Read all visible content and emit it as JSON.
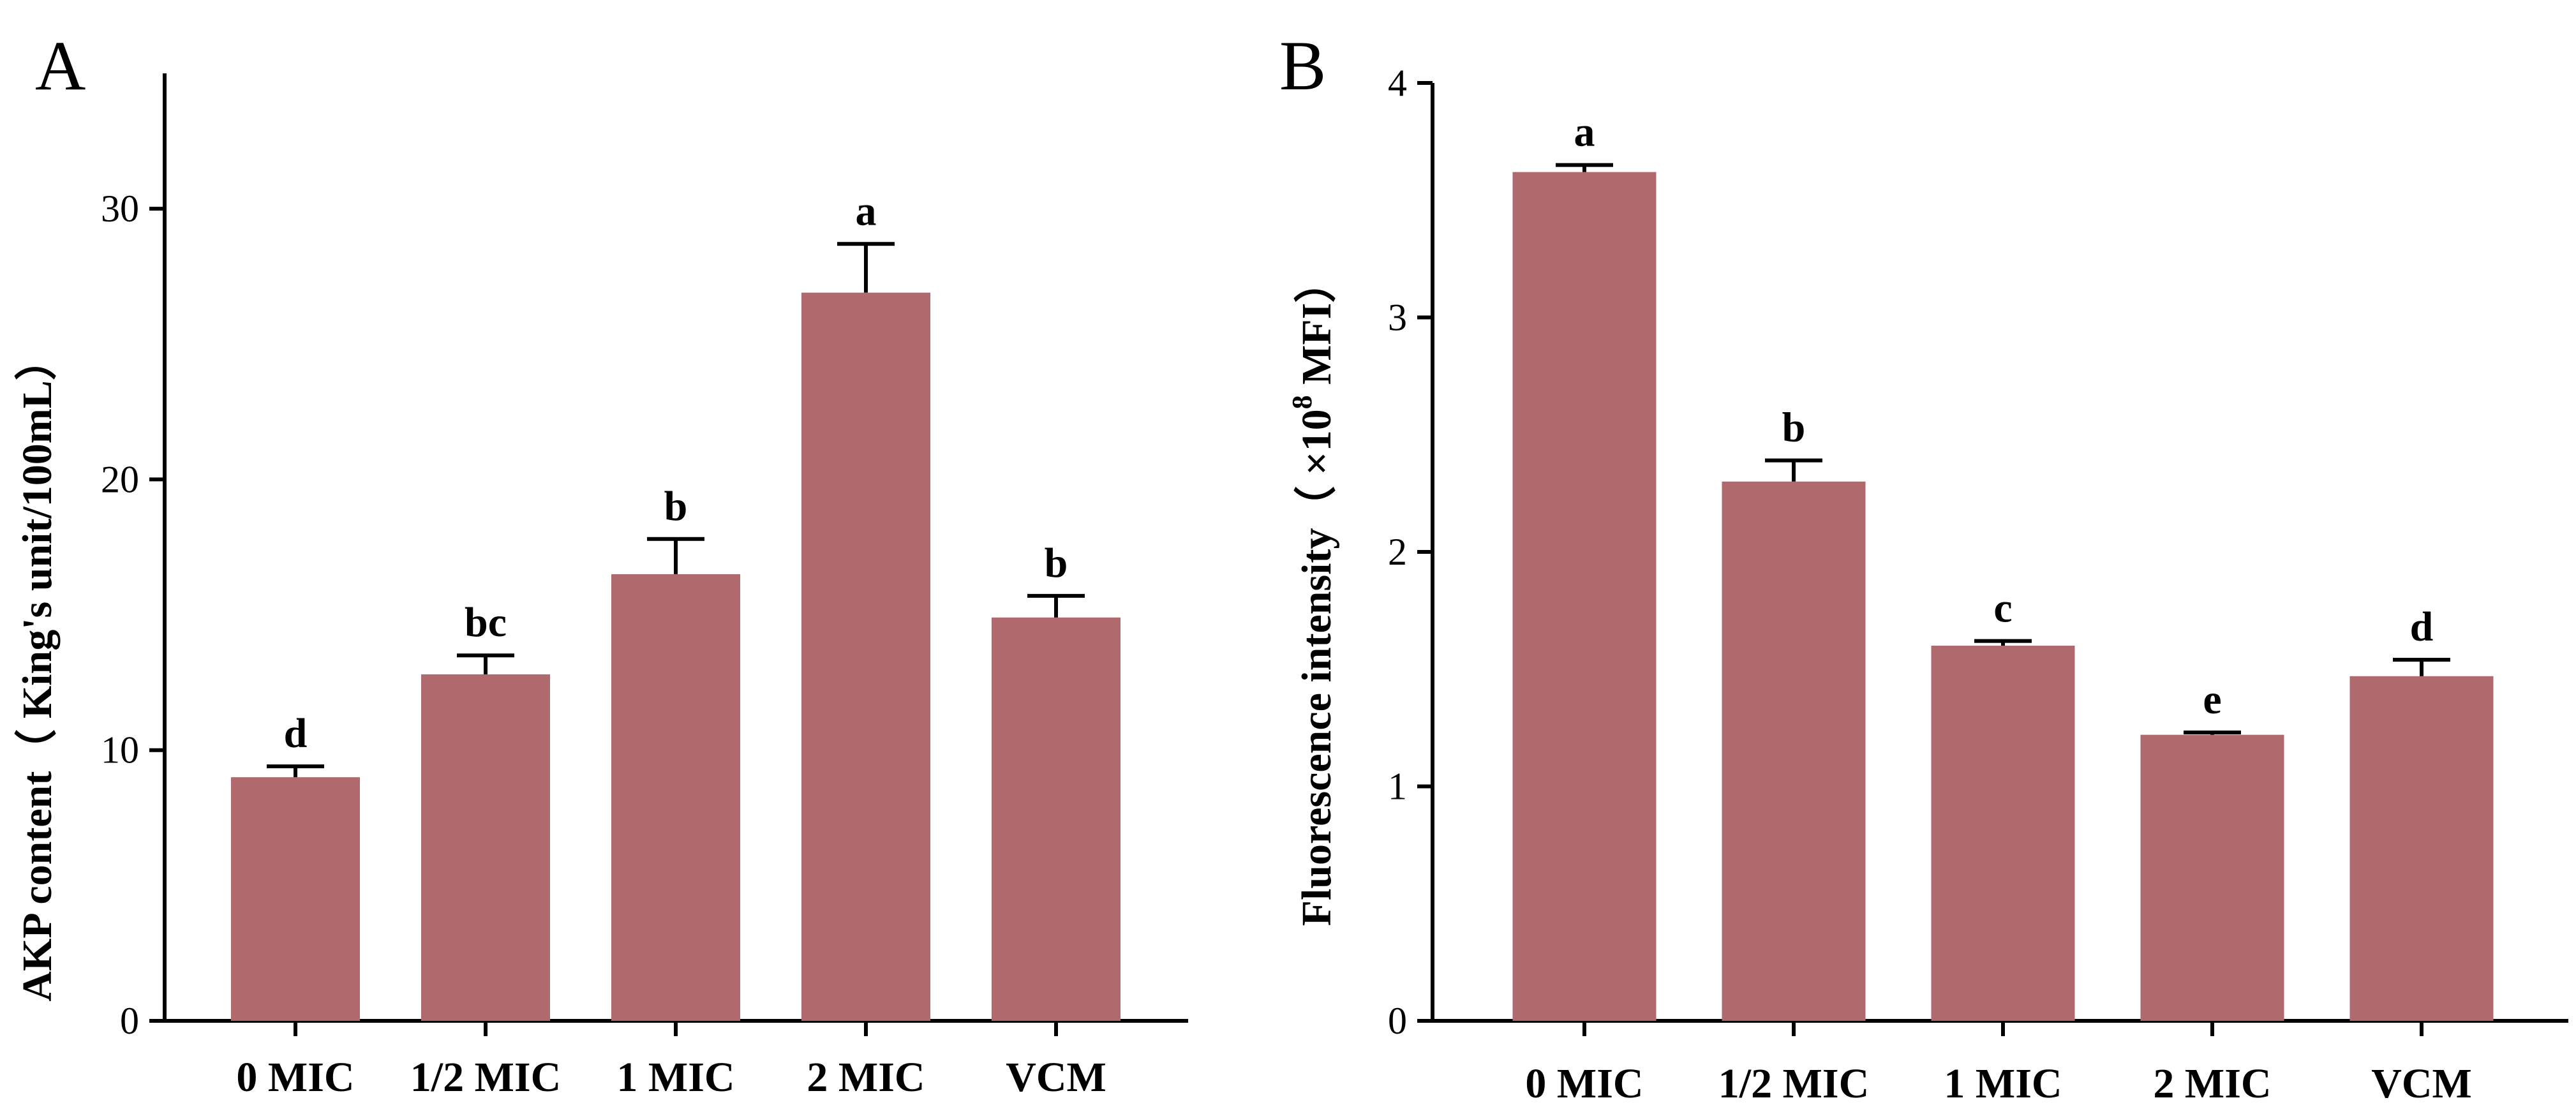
{
  "chart_data": [
    {
      "type": "bar",
      "panel": "A",
      "ylabel_main": "AKP content",
      "ylabel_paren": "（ King's unit/100mL）",
      "xlabel": "",
      "ylim": [
        0,
        35
      ],
      "yticks": [
        0,
        10,
        20,
        30
      ],
      "categories": [
        "0 MIC",
        "1/2 MIC",
        "1 MIC",
        "2 MIC",
        "VCM"
      ],
      "values": [
        9.0,
        12.8,
        16.5,
        26.9,
        14.9
      ],
      "errors": [
        0.4,
        0.7,
        1.3,
        1.8,
        0.8
      ],
      "significance": [
        "d",
        "bc",
        "b",
        "a",
        "b"
      ],
      "bar_color": "#b0696d"
    },
    {
      "type": "bar",
      "panel": "B",
      "ylabel_main": "Fluorescence intensity",
      "ylabel_paren_open": "（ ×10",
      "ylabel_exp": "8",
      "ylabel_paren_close": " MFI）",
      "xlabel": "",
      "ylim": [
        0,
        4
      ],
      "yticks": [
        0,
        1,
        2,
        3,
        4
      ],
      "categories": [
        "0 MIC",
        "1/2 MIC",
        "1 MIC",
        "2 MIC",
        "VCM"
      ],
      "values": [
        3.62,
        2.3,
        1.6,
        1.22,
        1.47
      ],
      "errors": [
        0.03,
        0.09,
        0.02,
        0.01,
        0.07
      ],
      "significance": [
        "a",
        "b",
        "c",
        "e",
        "d"
      ],
      "bar_color": "#b0696d"
    }
  ]
}
